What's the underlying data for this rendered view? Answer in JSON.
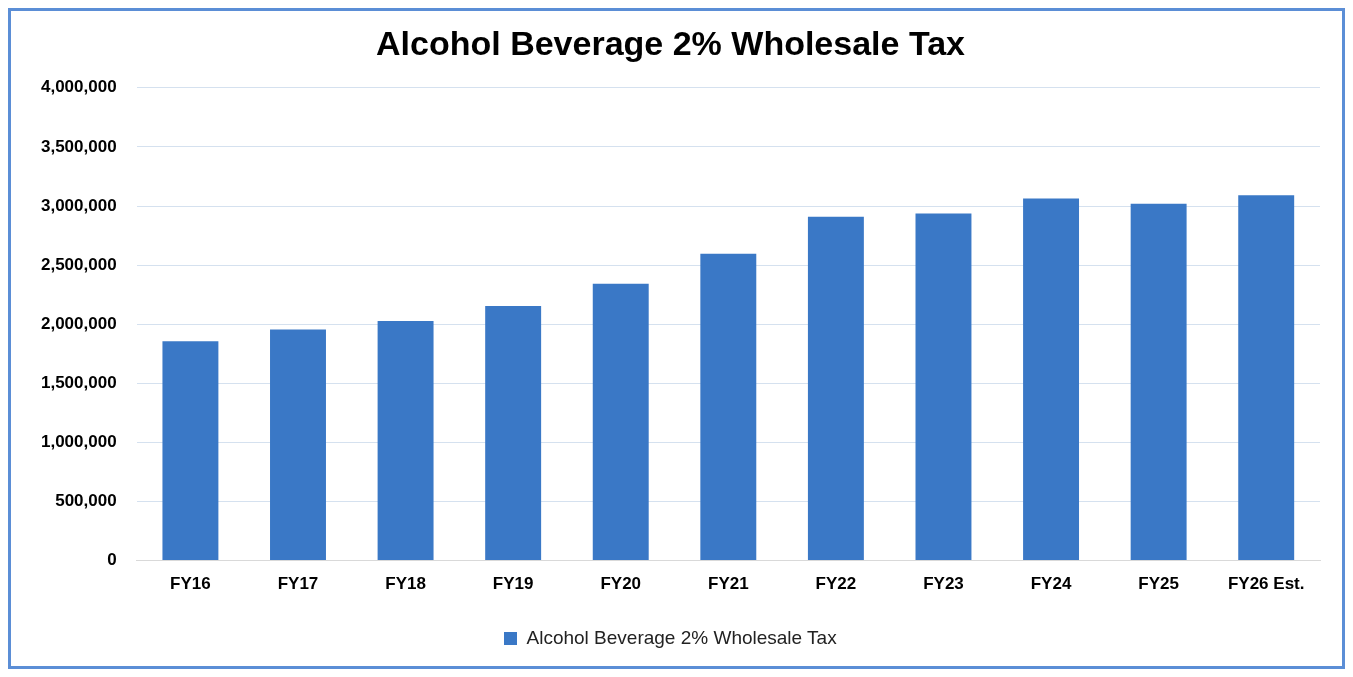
{
  "chart_data": {
    "type": "bar",
    "title": "Alcohol Beverage 2% Wholesale Tax",
    "categories": [
      "FY16",
      "FY17",
      "FY18",
      "FY19",
      "FY20",
      "FY21",
      "FY22",
      "FY23",
      "FY24",
      "FY25",
      "FY26 Est."
    ],
    "series": [
      {
        "name": "Alcohol Beverage 2% Wholesale Tax",
        "color": "#3a78c6",
        "values": [
          1855000,
          1955000,
          2027000,
          2153000,
          2342000,
          2595000,
          2910000,
          2937000,
          3063000,
          3018000,
          3090000
        ]
      }
    ],
    "ylim": [
      0,
      4000000
    ],
    "yticks": [
      {
        "value": 0,
        "label": "0"
      },
      {
        "value": 500000,
        "label": "500,000"
      },
      {
        "value": 1000000,
        "label": "1,000,000"
      },
      {
        "value": 1500000,
        "label": "1,500,000"
      },
      {
        "value": 2000000,
        "label": "2,000,000"
      },
      {
        "value": 2500000,
        "label": "2,500,000"
      },
      {
        "value": 3000000,
        "label": "3,000,000"
      },
      {
        "value": 3500000,
        "label": "3,500,000"
      },
      {
        "value": 4000000,
        "label": "4,000,000"
      }
    ],
    "grid": "y",
    "legend": "bottom"
  }
}
